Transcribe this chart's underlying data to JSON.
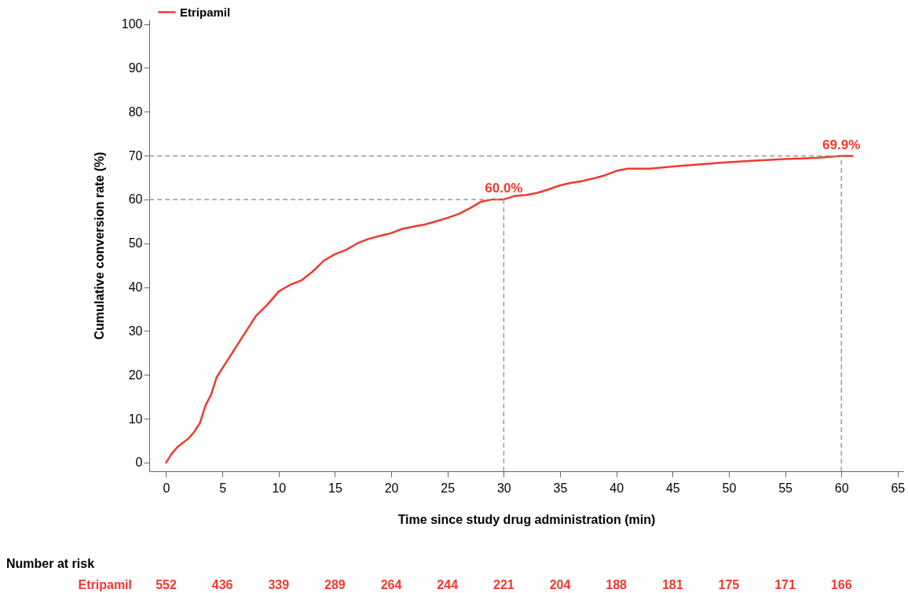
{
  "chart_data": {
    "type": "line",
    "xlabel": "Time since study drug administration (min)",
    "ylabel": "Cumulative conversion rate (%)",
    "xlim": [
      -1.5,
      65.5
    ],
    "ylim": [
      -2,
      101
    ],
    "xticks": [
      0,
      5,
      10,
      15,
      20,
      25,
      30,
      35,
      40,
      45,
      50,
      55,
      60,
      65
    ],
    "yticks": [
      0,
      10,
      20,
      30,
      40,
      50,
      60,
      70,
      80,
      90,
      100
    ],
    "grid": false,
    "legend": "top left",
    "line_style": "solid",
    "series": [
      {
        "name": "Etripamil",
        "color": "#f03a2c",
        "x": [
          0,
          0.5,
          1,
          1.5,
          2,
          2.5,
          3,
          3.5,
          4,
          4.5,
          5,
          6,
          7,
          8,
          9,
          10,
          11,
          12,
          13,
          14,
          15,
          16,
          17,
          18,
          19,
          20,
          21,
          22,
          23,
          24,
          25,
          26,
          27,
          28,
          29,
          30,
          31,
          32,
          33,
          34,
          35,
          36,
          37,
          38,
          39,
          40,
          41,
          43,
          45,
          47,
          49,
          50,
          52,
          55,
          58,
          60,
          61
        ],
        "values": [
          0,
          2,
          3.5,
          4.5,
          5.5,
          7,
          9,
          13,
          15.5,
          19.5,
          21.5,
          25.5,
          29.5,
          33.5,
          36,
          39,
          40.5,
          41.5,
          43.5,
          46,
          47.5,
          48.5,
          50,
          51,
          51.7,
          52.3,
          53.3,
          53.8,
          54.3,
          55,
          55.8,
          56.7,
          58,
          59.5,
          60,
          60,
          60.8,
          61,
          61.5,
          62.3,
          63.2,
          63.8,
          64.2,
          64.8,
          65.5,
          66.5,
          67,
          67,
          67.5,
          67.9,
          68.3,
          68.5,
          68.8,
          69.2,
          69.5,
          69.9,
          69.9
        ]
      }
    ],
    "ref_lines": [
      {
        "axis": "y",
        "value": 60,
        "color": "#999999",
        "line_style": "dashed"
      },
      {
        "axis": "y",
        "value": 69.9,
        "color": "#999999",
        "line_style": "dashed"
      },
      {
        "axis": "x",
        "value": 30,
        "color": "#999999",
        "line_style": "dashed"
      },
      {
        "axis": "x",
        "value": 60,
        "color": "#999999",
        "line_style": "dashed"
      }
    ],
    "annotations": [
      {
        "text": "60.0%",
        "x": 30,
        "y": 60
      },
      {
        "text": "69.9%",
        "x": 60,
        "y": 69.9
      },
      "Number at risk",
      "Etripamil",
      "552",
      "436",
      "339",
      "289",
      "264",
      "244",
      "221",
      "204",
      "188",
      "181",
      "175",
      "171",
      "166"
    ]
  }
}
